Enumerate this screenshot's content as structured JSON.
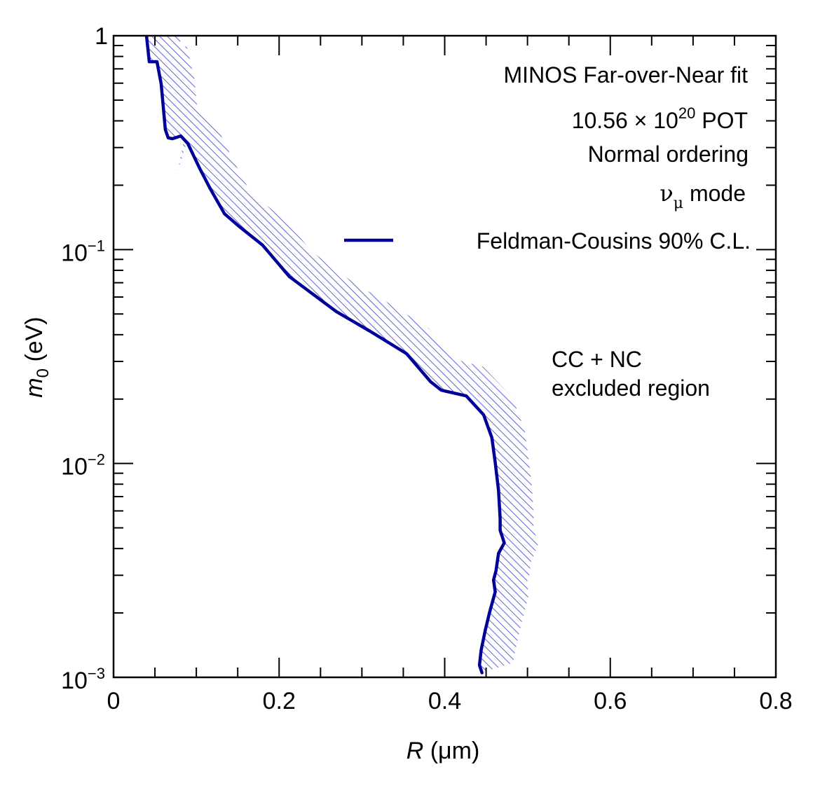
{
  "chart_data": {
    "type": "line",
    "title": "",
    "xlabel": "R (μm)",
    "xlabel_italic": "R",
    "xlabel_unit": " (μm)",
    "ylabel_main": "m",
    "ylabel_sub": "0",
    "ylabel_unit": " (eV)",
    "xlim": [
      0,
      0.8
    ],
    "ylim": [
      0.001,
      1
    ],
    "yscale": "log",
    "grid": false,
    "x_ticks": [
      {
        "value": 0,
        "label": "0"
      },
      {
        "value": 0.2,
        "label": "0.2"
      },
      {
        "value": 0.4,
        "label": "0.4"
      },
      {
        "value": 0.6,
        "label": "0.6"
      },
      {
        "value": 0.8,
        "label": "0.8"
      }
    ],
    "y_ticks": [
      {
        "value": 1,
        "base": "1",
        "exp": ""
      },
      {
        "value": 0.1,
        "base": "10",
        "exp": "−1"
      },
      {
        "value": 0.01,
        "base": "10",
        "exp": "−2"
      },
      {
        "value": 0.001,
        "base": "10",
        "exp": "−3"
      }
    ],
    "annotations": {
      "line1": "MINOS Far-over-Near fit",
      "line2_pre": "10.56 × 10",
      "line2_exp": "20",
      "line2_post": " POT",
      "line3": "Normal ordering",
      "line4_nu": "ν",
      "line4_sub": "μ",
      "line4_post": " mode",
      "region_line1": "CC + NC",
      "region_line2": "excluded region"
    },
    "legend": {
      "placement": "top-right",
      "entries": [
        {
          "label": "Feldman-Cousins 90% C.L.",
          "color": "#000099",
          "style": "solid"
        }
      ]
    },
    "series": [
      {
        "name": "Feldman-Cousins 90% C.L.",
        "color": "#000099",
        "hatch_color": "#6666dd",
        "x": [
          0.0398,
          0.0432,
          0.0525,
          0.0576,
          0.0626,
          0.066,
          0.0711,
          0.0813,
          0.0897,
          0.104,
          0.117,
          0.134,
          0.151,
          0.18,
          0.2125,
          0.269,
          0.31,
          0.354,
          0.383,
          0.396,
          0.426,
          0.447,
          0.457,
          0.461,
          0.465,
          0.467,
          0.467,
          0.472,
          0.465,
          0.462,
          0.459,
          0.461,
          0.454,
          0.449,
          0.444,
          0.442,
          0.445
        ],
        "y": [
          1.0,
          0.756,
          0.756,
          0.594,
          0.364,
          0.333,
          0.33,
          0.34,
          0.313,
          0.24,
          0.192,
          0.147,
          0.129,
          0.105,
          0.0747,
          0.0513,
          0.0415,
          0.0326,
          0.0241,
          0.022,
          0.0207,
          0.0169,
          0.0132,
          0.0101,
          0.00748,
          0.00553,
          0.00487,
          0.00425,
          0.0038,
          0.00315,
          0.00285,
          0.00251,
          0.002,
          0.00166,
          0.00134,
          0.00114,
          0.00105
        ]
      }
    ]
  }
}
